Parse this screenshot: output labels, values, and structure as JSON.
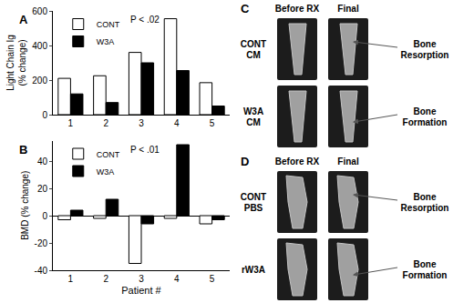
{
  "chart_data": [
    {
      "type": "bar",
      "panel": "A",
      "annotation": "P < .02",
      "y_label": [
        "Light Chain Ig",
        "(% change)"
      ],
      "categories": [
        "1",
        "2",
        "3",
        "4",
        "5"
      ],
      "series": [
        {
          "name": "CONT",
          "color": "#ffffff",
          "values": [
            210,
            225,
            360,
            555,
            185
          ]
        },
        {
          "name": "W3A",
          "color": "#000000",
          "values": [
            120,
            70,
            300,
            255,
            50
          ]
        }
      ],
      "ylim": [
        0,
        600
      ],
      "yticks": [
        0,
        200,
        400,
        600
      ],
      "grid": false,
      "legend": "upper left"
    },
    {
      "type": "bar",
      "panel": "B",
      "annotation": "P < .01",
      "y_label": [
        "BMD (% change)"
      ],
      "x_label": "Patient #",
      "categories": [
        "1",
        "2",
        "3",
        "4",
        "5"
      ],
      "series": [
        {
          "name": "CONT",
          "color": "#ffffff",
          "values": [
            -3,
            -2,
            -35,
            -2,
            -6
          ]
        },
        {
          "name": "W3A",
          "color": "#000000",
          "values": [
            4,
            12,
            -6,
            52,
            -3
          ]
        }
      ],
      "ylim": [
        -40,
        55
      ],
      "yticks": [
        -40,
        -20,
        0,
        20,
        40
      ],
      "grid": false,
      "legend": "upper left"
    }
  ],
  "image_panels": [
    {
      "panel": "C",
      "columns": [
        "Before RX",
        "Final"
      ],
      "rows": [
        {
          "label": [
            "CONT",
            "CM"
          ],
          "note": [
            "Bone",
            "Resorption"
          ]
        },
        {
          "label": [
            "W3A",
            "CM"
          ],
          "note": [
            "Bone",
            "Formation"
          ]
        }
      ]
    },
    {
      "panel": "D",
      "columns": [
        "Before RX",
        "Final"
      ],
      "rows": [
        {
          "label": [
            "CONT",
            "PBS"
          ],
          "note": [
            "Bone",
            "Resorption"
          ]
        },
        {
          "label": [
            "rW3A"
          ],
          "note": [
            "Bone",
            "Formation"
          ]
        }
      ]
    }
  ]
}
